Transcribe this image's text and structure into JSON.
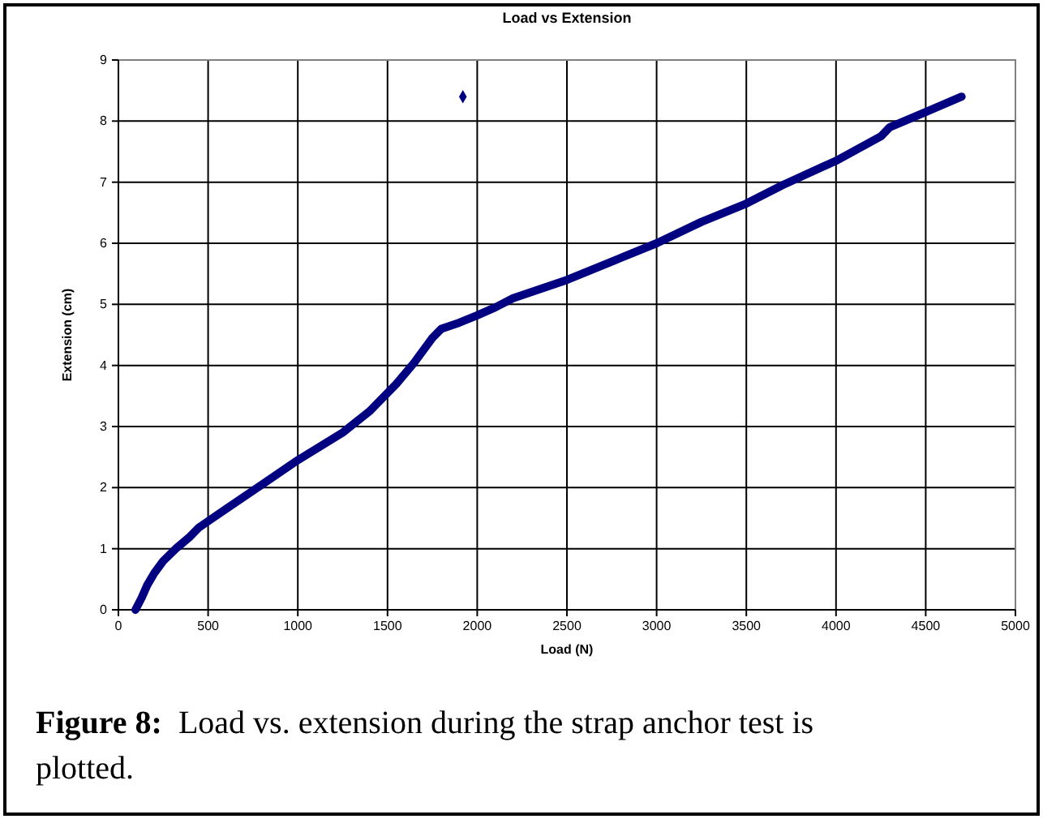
{
  "chart_data": {
    "type": "line",
    "title": "Load vs Extension",
    "xlabel": "Load (N)",
    "ylabel": "Extension (cm)",
    "annotations": [
      "Figure 8:  Load vs. extension during the strap anchor test is plotted."
    ],
    "xlim": [
      0,
      5000
    ],
    "xticks": [
      0,
      500,
      1000,
      1500,
      2000,
      2500,
      3000,
      3500,
      4000,
      4500,
      5000
    ],
    "ylim": [
      0,
      9
    ],
    "yticks": [
      0,
      1,
      2,
      3,
      4,
      5,
      6,
      7,
      8,
      9
    ],
    "grid": true,
    "series": [
      {
        "color": "#000080",
        "marker": "none",
        "x": [
          95,
          130,
          160,
          200,
          250,
          320,
          400,
          450,
          600,
          800,
          1000,
          1250,
          1400,
          1550,
          1650,
          1750,
          1800,
          1900,
          2000,
          2100,
          2200,
          2500,
          2750,
          3000,
          3250,
          3500,
          3700,
          4000,
          4250,
          4300,
          4500,
          4700
        ],
        "values": [
          0,
          0.2,
          0.4,
          0.6,
          0.8,
          1.0,
          1.2,
          1.35,
          1.65,
          2.05,
          2.45,
          2.9,
          3.25,
          3.7,
          4.05,
          4.45,
          4.6,
          4.7,
          4.82,
          4.95,
          5.1,
          5.4,
          5.7,
          6.0,
          6.35,
          6.65,
          6.95,
          7.35,
          7.75,
          7.9,
          8.15,
          8.4
        ]
      },
      {
        "type": "scatter",
        "color": "#000080",
        "marker": "diamond",
        "x": [
          1920
        ],
        "values": [
          8.4
        ]
      }
    ]
  }
}
